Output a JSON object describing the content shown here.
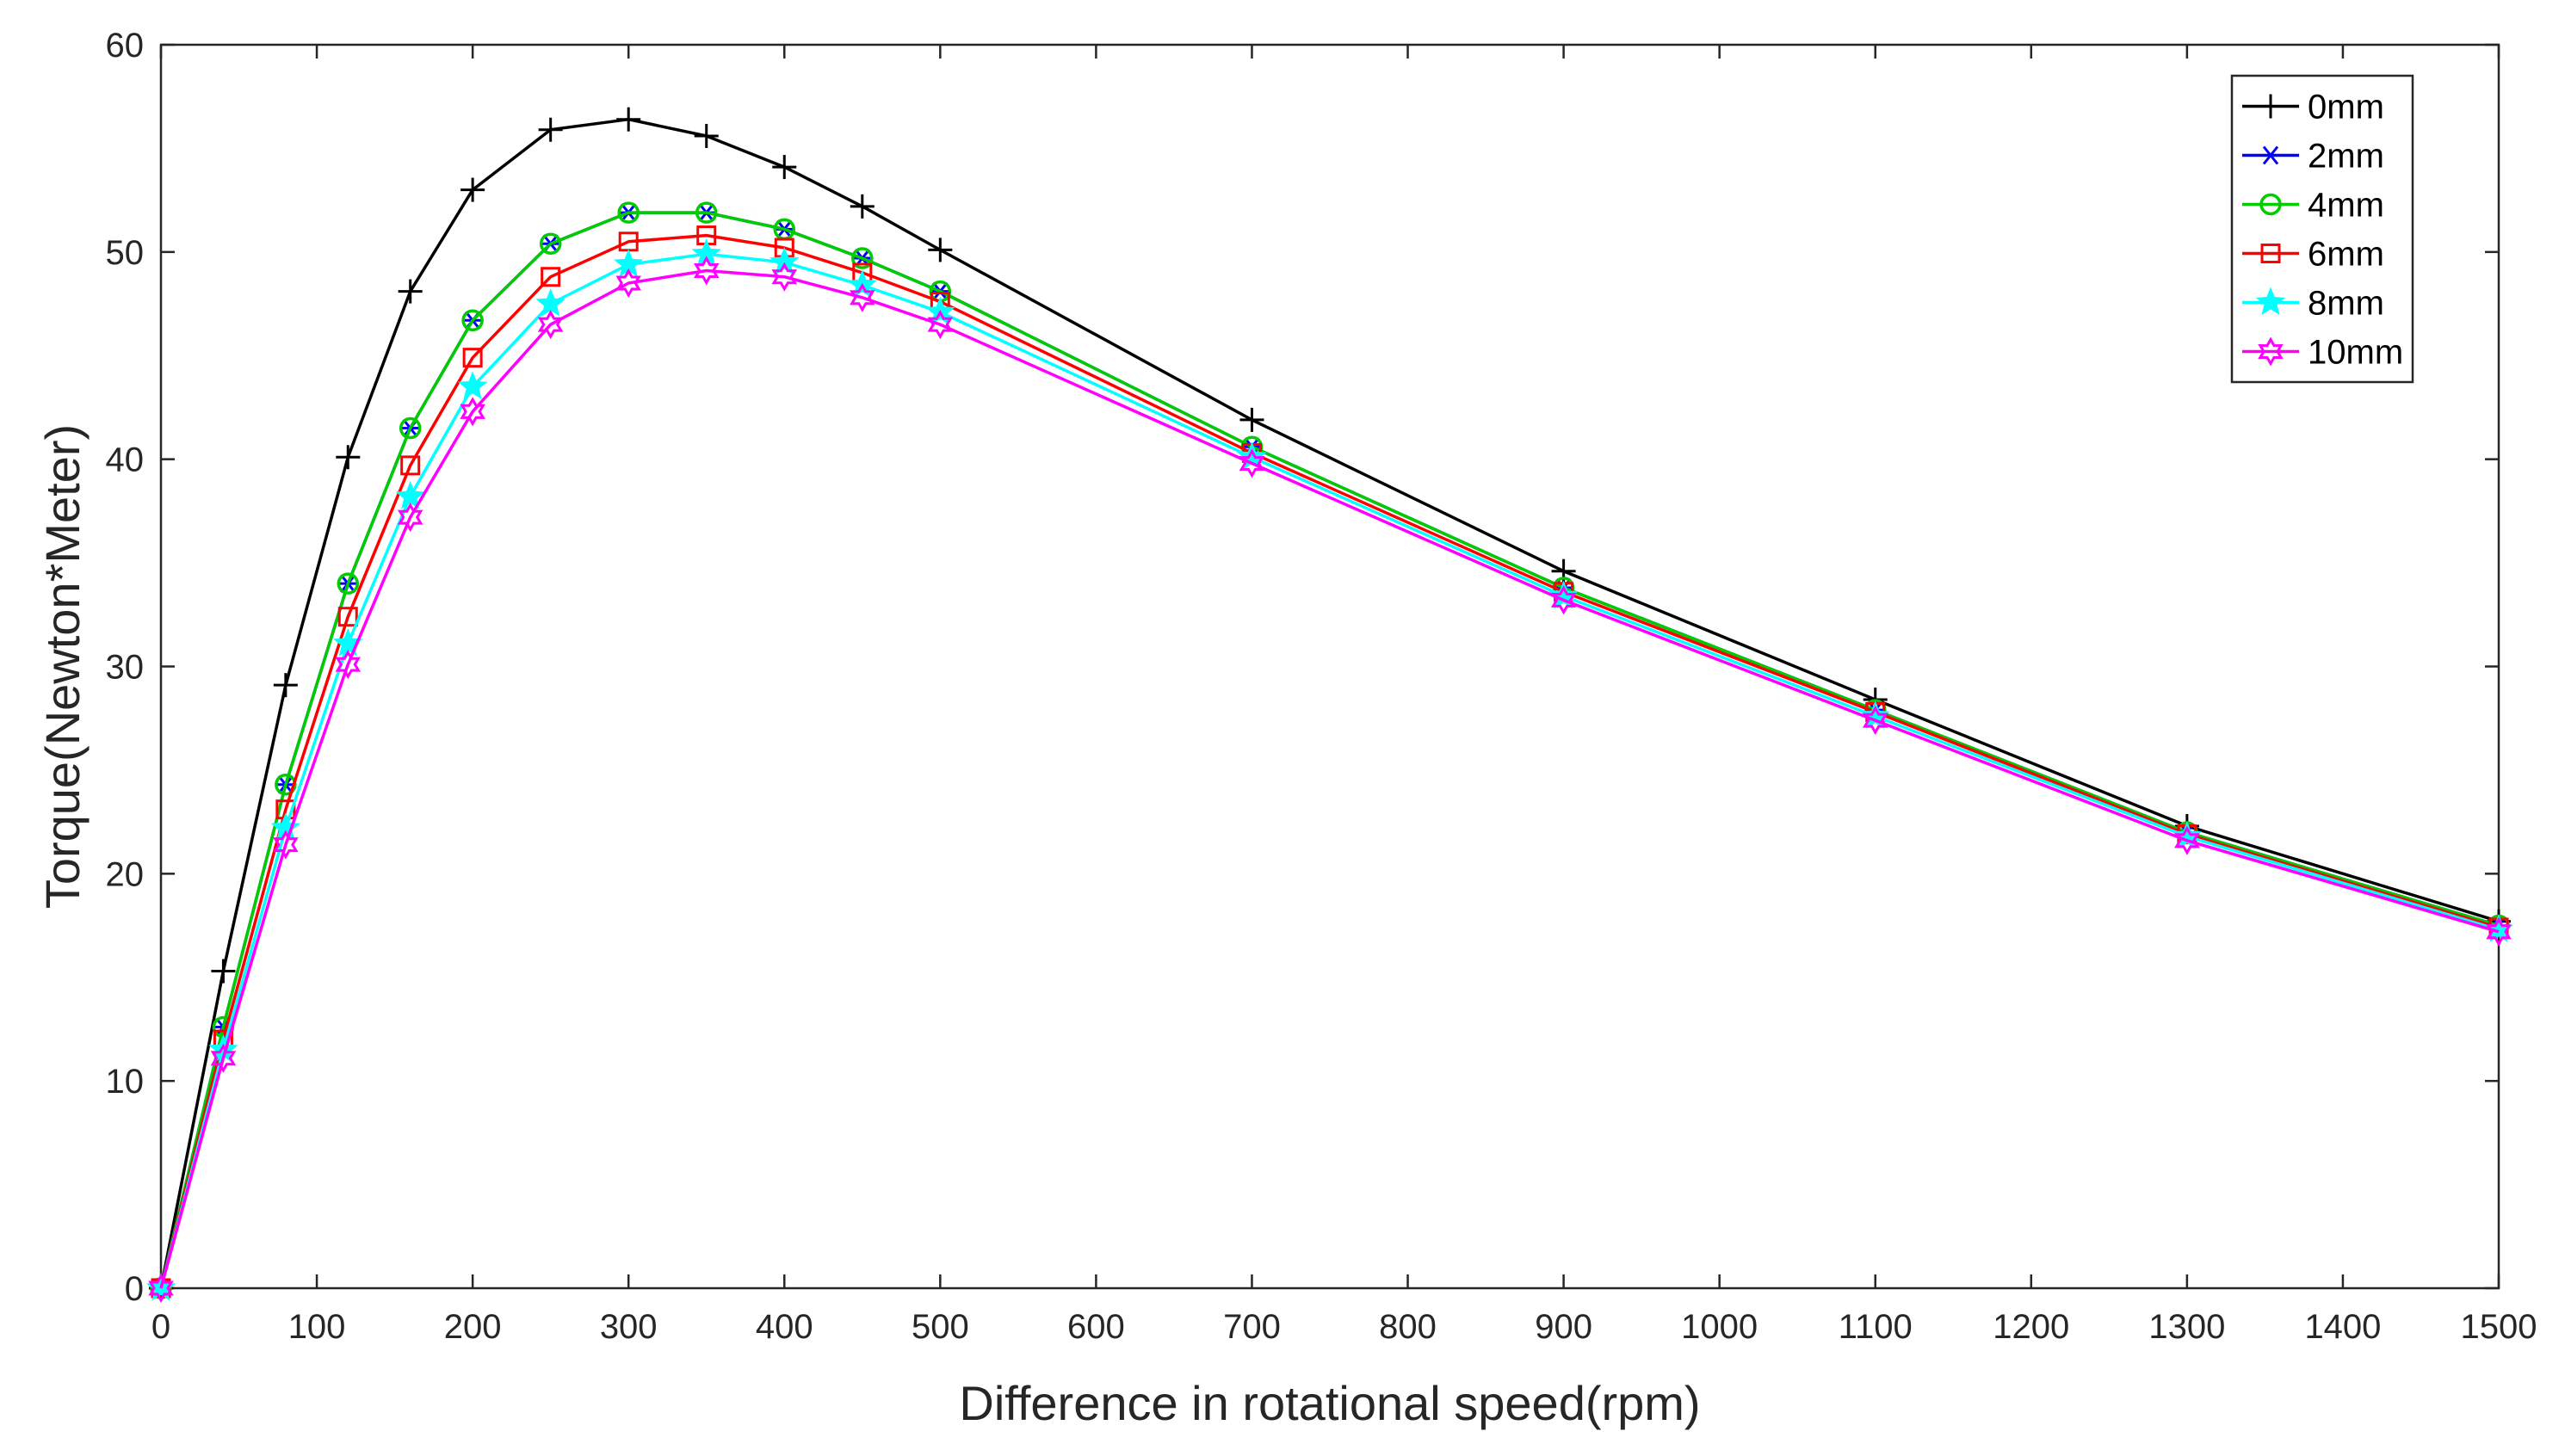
{
  "chart_data": {
    "type": "line",
    "title": "",
    "xlabel": "Difference in rotational speed(rpm)",
    "ylabel": "Torque(Newton*Meter)",
    "xlim": [
      0,
      1500
    ],
    "ylim": [
      0,
      60
    ],
    "xticks": [
      0,
      100,
      200,
      300,
      400,
      500,
      600,
      700,
      800,
      900,
      1000,
      1100,
      1200,
      1300,
      1400,
      1500
    ],
    "yticks": [
      0,
      10,
      20,
      30,
      40,
      50,
      60
    ],
    "grid": false,
    "legend_position": "top-right",
    "x": [
      0,
      40,
      80,
      120,
      160,
      200,
      250,
      300,
      350,
      400,
      450,
      500,
      700,
      900,
      1100,
      1300,
      1500
    ],
    "series": [
      {
        "name": "0mm",
        "color": "#000000",
        "marker": "plus",
        "values": [
          0,
          15.3,
          29.1,
          40.1,
          48.1,
          53.0,
          55.9,
          56.4,
          55.6,
          54.1,
          52.2,
          50.1,
          41.9,
          34.6,
          28.4,
          22.3,
          17.7
        ]
      },
      {
        "name": "2mm",
        "color": "#0000ff",
        "marker": "asterisk",
        "values": [
          0,
          12.6,
          24.3,
          34.0,
          41.5,
          46.7,
          50.4,
          51.9,
          51.9,
          51.1,
          49.7,
          48.1,
          40.6,
          33.8,
          27.9,
          22.0,
          17.5
        ]
      },
      {
        "name": "4mm",
        "color": "#00cc00",
        "marker": "circle",
        "values": [
          0,
          12.6,
          24.3,
          34.0,
          41.5,
          46.7,
          50.4,
          51.9,
          51.9,
          51.1,
          49.7,
          48.1,
          40.6,
          33.8,
          27.9,
          22.0,
          17.5
        ]
      },
      {
        "name": "6mm",
        "color": "#ff0000",
        "marker": "square",
        "values": [
          0,
          12.0,
          23.1,
          32.4,
          39.7,
          44.9,
          48.8,
          50.5,
          50.8,
          50.2,
          49.0,
          47.6,
          40.3,
          33.6,
          27.8,
          21.9,
          17.4
        ]
      },
      {
        "name": "8mm",
        "color": "#00ffff",
        "marker": "pentagram",
        "values": [
          0,
          11.5,
          22.2,
          31.1,
          38.2,
          43.5,
          47.5,
          49.4,
          49.9,
          49.5,
          48.4,
          47.1,
          40.1,
          33.4,
          27.6,
          21.8,
          17.3
        ]
      },
      {
        "name": "10mm",
        "color": "#ff00ff",
        "marker": "hexagram",
        "values": [
          0,
          11.1,
          21.4,
          30.1,
          37.2,
          42.3,
          46.5,
          48.5,
          49.1,
          48.8,
          47.8,
          46.5,
          39.8,
          33.2,
          27.4,
          21.6,
          17.2
        ]
      }
    ]
  }
}
